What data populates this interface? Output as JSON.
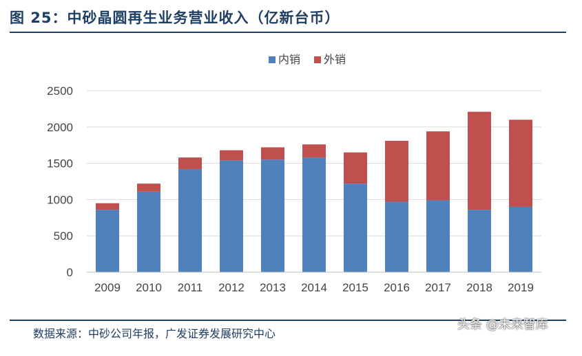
{
  "page": {
    "title": "图 25：中砂晶圆再生业务营业收入（亿新台币）",
    "source": "数据来源：中砂公司年报，广发证券发展研究中心",
    "watermark": "头条 @未来智库"
  },
  "chart_data": {
    "type": "bar",
    "stacked": true,
    "title": "图 25：中砂晶圆再生业务营业收入（亿新台币）",
    "xlabel": "",
    "ylabel": "",
    "categories": [
      "2009",
      "2010",
      "2011",
      "2012",
      "2013",
      "2014",
      "2015",
      "2016",
      "2017",
      "2018",
      "2019"
    ],
    "series": [
      {
        "name": "内销",
        "color": "#4f81bd",
        "values": [
          860,
          1110,
          1420,
          1540,
          1550,
          1580,
          1220,
          970,
          990,
          860,
          900
        ]
      },
      {
        "name": "外销",
        "color": "#c0504d",
        "values": [
          90,
          110,
          160,
          140,
          170,
          180,
          430,
          840,
          950,
          1350,
          1200
        ]
      }
    ],
    "ylim": [
      0,
      2500
    ],
    "yticks": [
      0,
      500,
      1000,
      1500,
      2000,
      2500
    ],
    "grid": true,
    "legend": "top-center"
  }
}
